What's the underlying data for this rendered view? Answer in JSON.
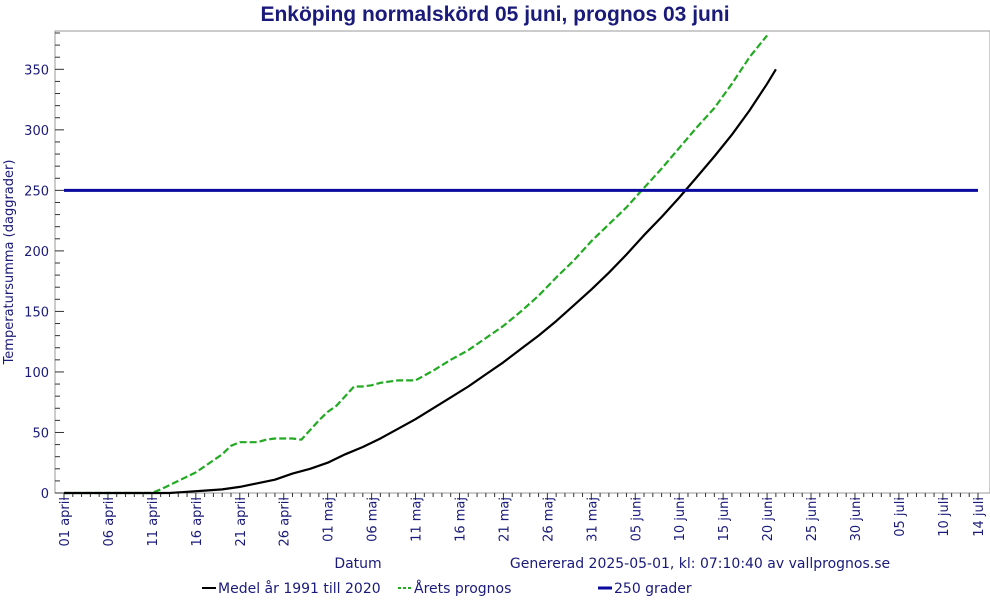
{
  "chart_data": {
    "type": "line",
    "title": "Enköping normalskörd 05 juni, prognos 03 juni",
    "xlabel": "Datum",
    "ylabel": "Temperatursumma (daggrader)",
    "generated": "Generated 2025-05-01, kl: 07:10:40 av vallprognos.se",
    "generated_text": "Genererad 2025-05-01, kl: 07:10:40 av vallprognos.se",
    "ylim": [
      0,
      380
    ],
    "yticks": [
      0,
      50,
      100,
      150,
      200,
      250,
      300,
      350
    ],
    "xlim_days": [
      0,
      104
    ],
    "xticks": [
      {
        "day": 0,
        "label": "01 april"
      },
      {
        "day": 5,
        "label": "06 april"
      },
      {
        "day": 10,
        "label": "11 april"
      },
      {
        "day": 15,
        "label": "16 april"
      },
      {
        "day": 20,
        "label": "21 april"
      },
      {
        "day": 25,
        "label": "26 april"
      },
      {
        "day": 30,
        "label": "01 maj"
      },
      {
        "day": 35,
        "label": "06 maj"
      },
      {
        "day": 40,
        "label": "11 maj"
      },
      {
        "day": 45,
        "label": "16 maj"
      },
      {
        "day": 50,
        "label": "21 maj"
      },
      {
        "day": 55,
        "label": "26 maj"
      },
      {
        "day": 60,
        "label": "31 maj"
      },
      {
        "day": 65,
        "label": "05 juni"
      },
      {
        "day": 70,
        "label": "10 juni"
      },
      {
        "day": 75,
        "label": "15 juni"
      },
      {
        "day": 80,
        "label": "20 juni"
      },
      {
        "day": 85,
        "label": "25 juni"
      },
      {
        "day": 90,
        "label": "30 juni"
      },
      {
        "day": 95,
        "label": "05 juli"
      },
      {
        "day": 100,
        "label": "10 juli"
      },
      {
        "day": 104,
        "label": "14 juli"
      }
    ],
    "series": [
      {
        "name": "Medel år 1991 till 2020",
        "color": "#000000",
        "style": "solid",
        "x": [
          0,
          10,
          12,
          14,
          16,
          18,
          20,
          22,
          24,
          26,
          28,
          30,
          32,
          34,
          36,
          38,
          40,
          42,
          44,
          46,
          48,
          50,
          52,
          54,
          56,
          58,
          60,
          62,
          64,
          66,
          68,
          70,
          72,
          74,
          76,
          78,
          80,
          81
        ],
        "y": [
          0,
          0,
          0,
          1,
          2,
          3,
          5,
          8,
          11,
          16,
          20,
          25,
          32,
          38,
          45,
          53,
          61,
          70,
          79,
          88,
          98,
          108,
          119,
          130,
          142,
          155,
          168,
          182,
          197,
          213,
          228,
          244,
          261,
          278,
          296,
          316,
          338,
          350
        ]
      },
      {
        "name": "Årets prognos",
        "color": "#22aa22",
        "style": "dashed",
        "x": [
          0,
          10,
          11,
          13,
          15,
          16,
          18,
          19,
          20,
          22,
          23,
          24,
          26,
          27,
          28,
          29,
          30,
          31,
          32,
          33,
          34,
          35,
          36,
          38,
          40,
          42,
          44,
          46,
          48,
          50,
          52,
          54,
          56,
          58,
          60,
          62,
          64,
          66,
          68,
          70,
          72,
          74,
          76,
          78,
          80
        ],
        "y": [
          0,
          0,
          3,
          10,
          17,
          22,
          32,
          39,
          42,
          42,
          44,
          45,
          45,
          44,
          52,
          60,
          67,
          72,
          80,
          88,
          88,
          89,
          91,
          93,
          93,
          101,
          110,
          118,
          128,
          138,
          150,
          163,
          178,
          192,
          208,
          222,
          236,
          252,
          268,
          285,
          302,
          318,
          338,
          360,
          378
        ]
      },
      {
        "name": "250 grader",
        "color": "#0a0aa0",
        "style": "solid",
        "x": [
          0,
          104
        ],
        "y": [
          250,
          250
        ]
      }
    ],
    "legend_position": "bottom",
    "grid": false
  }
}
